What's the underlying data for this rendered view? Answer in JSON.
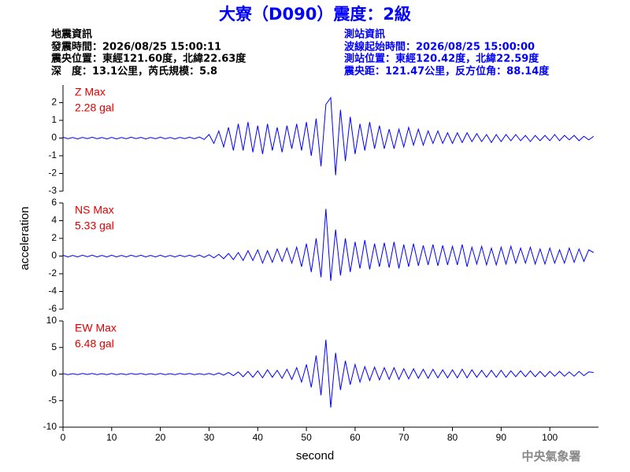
{
  "header": {
    "title": "大寮（D090）震度：2級",
    "left": [
      "地震資訊",
      "發震時間：2026/08/25 15:00:11",
      "震央位置：東經121.60度，北緯22.63度",
      "深　度：13.1公里，芮氏規模：5.8"
    ],
    "right": [
      "測站資訊",
      "波線起始時間：2026/08/25 15:00:00",
      "測站位置：東經120.42度，北緯22.59度",
      "震央距：121.47公里，反方位角：88.14度"
    ]
  },
  "footer": "中央氣象署",
  "chart_data": [
    {
      "type": "line",
      "label": "Z Max",
      "max_label": "2.28 gal",
      "ylim": [
        -3,
        3
      ],
      "yticks": [
        -3,
        -2,
        -1,
        0,
        1,
        2
      ],
      "xlim": [
        0,
        110
      ],
      "x": [
        0,
        1,
        2,
        3,
        4,
        5,
        6,
        7,
        8,
        9,
        10,
        11,
        12,
        13,
        14,
        15,
        16,
        17,
        18,
        19,
        20,
        21,
        22,
        23,
        24,
        25,
        26,
        27,
        28,
        29,
        30,
        31,
        32,
        33,
        34,
        35,
        36,
        37,
        38,
        39,
        40,
        41,
        42,
        43,
        44,
        45,
        46,
        47,
        48,
        49,
        50,
        51,
        52,
        53,
        54,
        55,
        56,
        57,
        58,
        59,
        60,
        61,
        62,
        63,
        64,
        65,
        66,
        67,
        68,
        69,
        70,
        71,
        72,
        73,
        74,
        75,
        76,
        77,
        78,
        79,
        80,
        81,
        82,
        83,
        84,
        85,
        86,
        87,
        88,
        89,
        90,
        91,
        92,
        93,
        94,
        95,
        96,
        97,
        98,
        99,
        100,
        101,
        102,
        103,
        104,
        105,
        106,
        107,
        108,
        109
      ],
      "series": [
        {
          "color": "#0000ff",
          "values": [
            0.05,
            -0.04,
            0.03,
            -0.05,
            0.04,
            -0.03,
            0.05,
            -0.04,
            0.03,
            -0.05,
            0.04,
            -0.05,
            0.03,
            -0.04,
            0.05,
            -0.03,
            0.04,
            -0.05,
            0.03,
            -0.04,
            0.05,
            -0.04,
            0.03,
            -0.05,
            0.04,
            -0.03,
            0.05,
            -0.04,
            0.06,
            -0.08,
            0.2,
            -0.3,
            0.4,
            -0.5,
            0.6,
            -0.7,
            0.8,
            -0.7,
            0.9,
            -0.8,
            0.7,
            -0.9,
            0.8,
            -0.7,
            0.6,
            -0.8,
            0.7,
            -0.6,
            0.8,
            -0.7,
            0.9,
            -1.0,
            1.1,
            -1.6,
            1.9,
            2.28,
            -2.1,
            1.6,
            -1.3,
            1.2,
            -0.9,
            0.8,
            -0.7,
            0.9,
            -0.6,
            0.7,
            -0.6,
            0.5,
            -0.6,
            0.5,
            -0.5,
            0.6,
            -0.4,
            0.5,
            -0.4,
            0.4,
            -0.3,
            0.4,
            -0.3,
            0.3,
            -0.3,
            0.3,
            -0.25,
            0.3,
            -0.2,
            0.25,
            -0.2,
            0.2,
            -0.25,
            0.2,
            -0.2,
            0.2,
            -0.15,
            0.2,
            -0.15,
            0.15,
            -0.2,
            0.15,
            -0.15,
            0.15,
            -0.15,
            0.2,
            -0.15,
            0.15,
            -0.1,
            0.15,
            -0.15,
            0.1,
            -0.1,
            0.1
          ]
        }
      ]
    },
    {
      "type": "line",
      "label": "NS Max",
      "max_label": "5.33 gal",
      "ylabel": "acceleration",
      "ylim": [
        -6,
        6
      ],
      "yticks": [
        -6,
        -4,
        -2,
        0,
        2,
        4,
        6
      ],
      "xlim": [
        0,
        110
      ],
      "x": [
        0,
        1,
        2,
        3,
        4,
        5,
        6,
        7,
        8,
        9,
        10,
        11,
        12,
        13,
        14,
        15,
        16,
        17,
        18,
        19,
        20,
        21,
        22,
        23,
        24,
        25,
        26,
        27,
        28,
        29,
        30,
        31,
        32,
        33,
        34,
        35,
        36,
        37,
        38,
        39,
        40,
        41,
        42,
        43,
        44,
        45,
        46,
        47,
        48,
        49,
        50,
        51,
        52,
        53,
        54,
        55,
        56,
        57,
        58,
        59,
        60,
        61,
        62,
        63,
        64,
        65,
        66,
        67,
        68,
        69,
        70,
        71,
        72,
        73,
        74,
        75,
        76,
        77,
        78,
        79,
        80,
        81,
        82,
        83,
        84,
        85,
        86,
        87,
        88,
        89,
        90,
        91,
        92,
        93,
        94,
        95,
        96,
        97,
        98,
        99,
        100,
        101,
        102,
        103,
        104,
        105,
        106,
        107,
        108,
        109
      ],
      "series": [
        {
          "color": "#0000ff",
          "values": [
            0.1,
            -0.1,
            0.08,
            -0.1,
            0.1,
            -0.08,
            0.1,
            -0.1,
            0.08,
            -0.1,
            0.1,
            -0.1,
            0.08,
            -0.1,
            0.1,
            -0.08,
            0.1,
            -0.1,
            0.08,
            -0.1,
            0.1,
            -0.1,
            0.08,
            -0.1,
            0.1,
            -0.08,
            0.1,
            -0.1,
            0.12,
            -0.15,
            0.15,
            -0.2,
            0.2,
            -0.3,
            0.3,
            -0.4,
            0.4,
            -0.5,
            0.6,
            -0.5,
            0.7,
            -0.8,
            0.6,
            -0.7,
            0.8,
            -0.6,
            0.9,
            -0.8,
            1.0,
            -1.2,
            1.4,
            -1.8,
            2.0,
            -2.4,
            5.33,
            -2.8,
            3.0,
            -2.2,
            2.0,
            -1.8,
            1.6,
            -1.4,
            1.8,
            -1.5,
            1.4,
            -1.2,
            1.5,
            -1.3,
            1.6,
            -1.4,
            1.3,
            -1.2,
            1.4,
            -1.1,
            1.2,
            -1.0,
            1.3,
            -1.1,
            1.2,
            -1.0,
            1.1,
            -1.0,
            1.3,
            -1.2,
            1.0,
            -0.9,
            1.1,
            -1.0,
            0.9,
            -1.0,
            1.0,
            -0.9,
            1.1,
            -0.8,
            0.9,
            -0.8,
            1.0,
            -0.9,
            0.8,
            -0.9,
            0.9,
            -0.8,
            0.7,
            -0.8,
            0.9,
            -0.7,
            0.8,
            -0.6,
            0.7,
            0.4
          ]
        }
      ]
    },
    {
      "type": "line",
      "label": "EW Max",
      "max_label": "6.48 gal",
      "xlabel": "second",
      "ylim": [
        -10,
        10
      ],
      "yticks": [
        -10,
        -5,
        0,
        5,
        10
      ],
      "xlim": [
        0,
        110
      ],
      "xticks": [
        0,
        10,
        20,
        30,
        40,
        50,
        60,
        70,
        80,
        90,
        100
      ],
      "x": [
        0,
        1,
        2,
        3,
        4,
        5,
        6,
        7,
        8,
        9,
        10,
        11,
        12,
        13,
        14,
        15,
        16,
        17,
        18,
        19,
        20,
        21,
        22,
        23,
        24,
        25,
        26,
        27,
        28,
        29,
        30,
        31,
        32,
        33,
        34,
        35,
        36,
        37,
        38,
        39,
        40,
        41,
        42,
        43,
        44,
        45,
        46,
        47,
        48,
        49,
        50,
        51,
        52,
        53,
        54,
        55,
        56,
        57,
        58,
        59,
        60,
        61,
        62,
        63,
        64,
        65,
        66,
        67,
        68,
        69,
        70,
        71,
        72,
        73,
        74,
        75,
        76,
        77,
        78,
        79,
        80,
        81,
        82,
        83,
        84,
        85,
        86,
        87,
        88,
        89,
        90,
        91,
        92,
        93,
        94,
        95,
        96,
        97,
        98,
        99,
        100,
        101,
        102,
        103,
        104,
        105,
        106,
        107,
        108,
        109
      ],
      "series": [
        {
          "color": "#0000ff",
          "values": [
            0.1,
            -0.1,
            0.08,
            -0.1,
            0.1,
            -0.08,
            0.1,
            -0.1,
            0.08,
            -0.1,
            0.1,
            -0.1,
            0.08,
            -0.1,
            0.1,
            -0.08,
            0.1,
            -0.1,
            0.08,
            -0.1,
            0.1,
            -0.1,
            0.08,
            -0.1,
            0.1,
            -0.08,
            0.1,
            -0.1,
            0.08,
            -0.1,
            0.1,
            -0.15,
            0.2,
            -0.2,
            0.3,
            -0.3,
            0.4,
            -0.5,
            0.5,
            -0.6,
            0.6,
            -0.7,
            0.8,
            -0.6,
            0.7,
            -0.8,
            0.9,
            -1.0,
            1.2,
            -1.5,
            1.8,
            -2.5,
            3.5,
            -4.0,
            6.48,
            -6.3,
            4.0,
            -3.0,
            2.5,
            -2.0,
            1.8,
            -1.5,
            1.4,
            -1.2,
            1.3,
            -1.1,
            1.2,
            -1.0,
            1.2,
            -1.0,
            1.0,
            -0.9,
            1.0,
            -0.8,
            0.9,
            -0.8,
            0.9,
            -0.7,
            0.8,
            -0.7,
            0.8,
            -0.7,
            0.9,
            -0.7,
            0.8,
            -0.6,
            0.7,
            -0.6,
            0.7,
            -0.6,
            0.7,
            -0.6,
            0.6,
            -0.5,
            0.6,
            -0.5,
            0.6,
            -0.5,
            0.5,
            -0.5,
            0.5,
            -0.4,
            0.5,
            -0.4,
            0.4,
            -0.4,
            0.5,
            -0.3,
            0.4,
            0.3
          ]
        }
      ]
    }
  ]
}
